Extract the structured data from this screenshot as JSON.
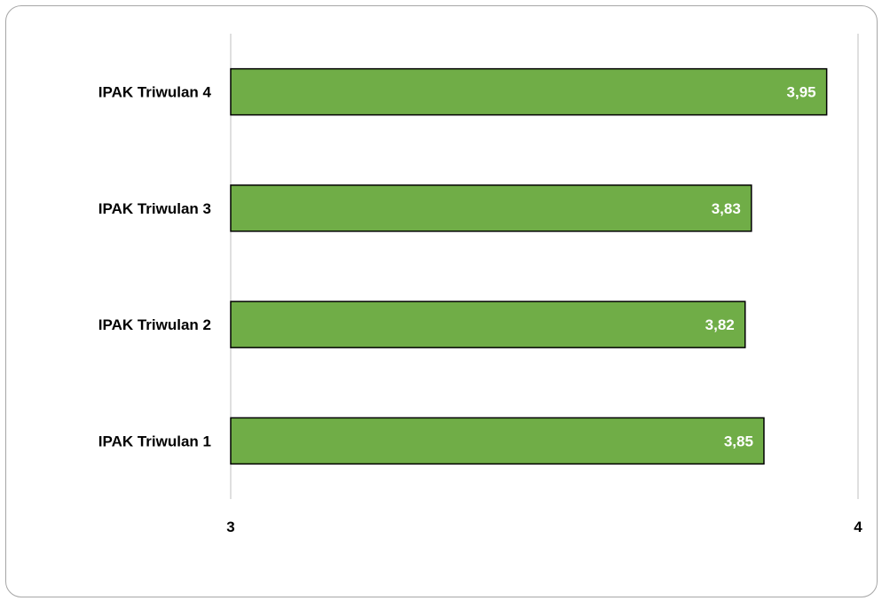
{
  "chart_data": {
    "type": "bar",
    "orientation": "horizontal",
    "categories": [
      "IPAK Triwulan 1",
      "IPAK Triwulan 2",
      "IPAK Triwulan 3",
      "IPAK Triwulan 4"
    ],
    "values": [
      3.85,
      3.82,
      3.83,
      3.95
    ],
    "data_labels": [
      "3,85",
      "3,82",
      "3,83",
      "3,95"
    ],
    "xlim": [
      3,
      4
    ],
    "x_ticks": [
      "3",
      "4"
    ],
    "title": "",
    "xlabel": "",
    "ylabel": "",
    "grid": "vertical",
    "legend": "none",
    "bar_color": "#70ad47",
    "bar_edge_color": "#000000"
  }
}
